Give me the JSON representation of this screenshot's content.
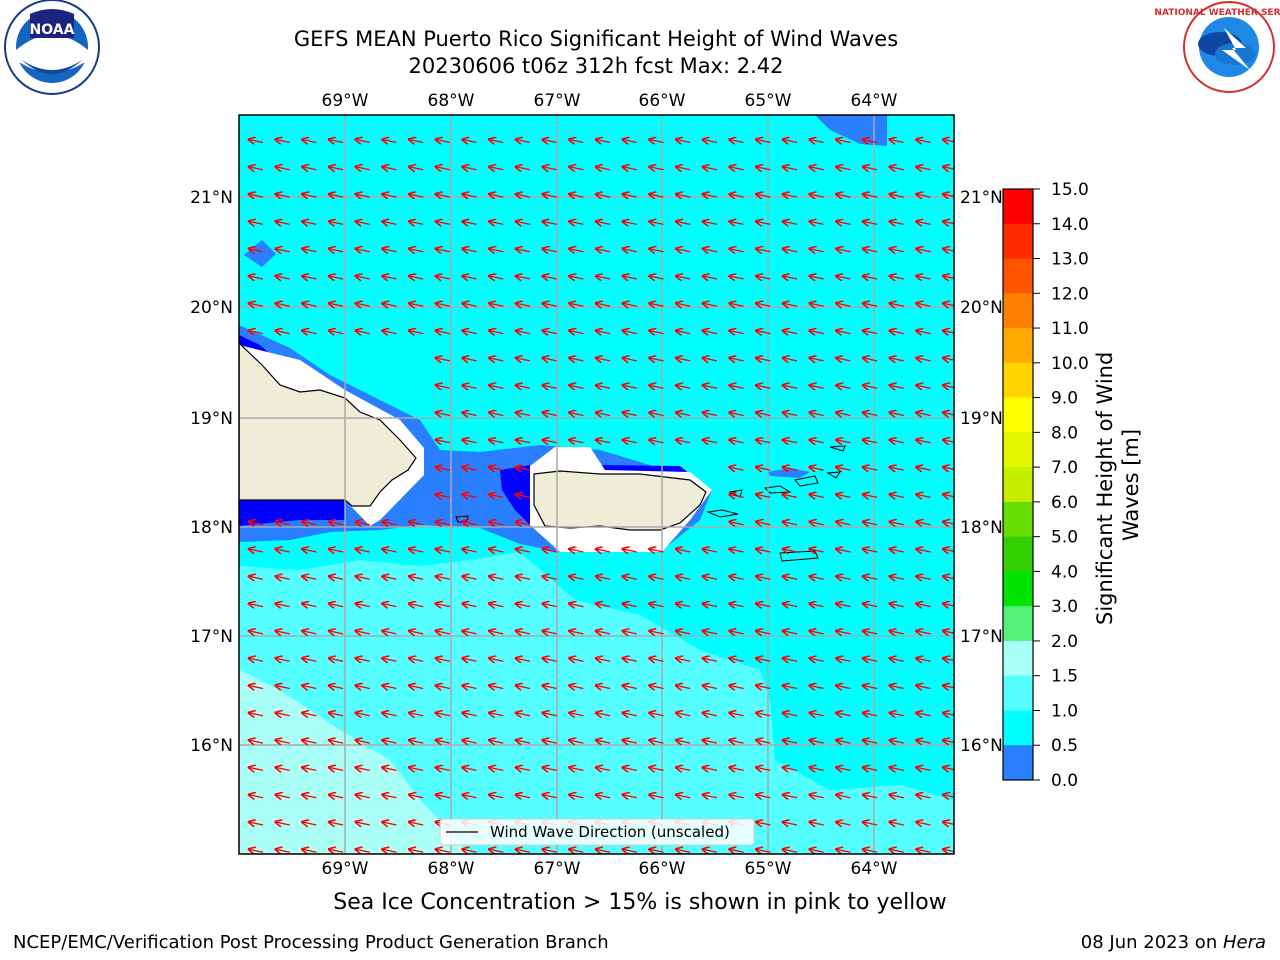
{
  "title_line1": "GEFS MEAN Puerto Rico Significant Height of Wind Waves",
  "title_line2": "20230606 t06z 312h fcst   Max: 2.42",
  "logos": {
    "left": "NOAA",
    "right": "NATIONAL WEATHER SERVICE"
  },
  "map": {
    "lon_labels": [
      "69°W",
      "68°W",
      "67°W",
      "66°W",
      "65°W",
      "64°W"
    ],
    "lat_labels": [
      "21°N",
      "20°N",
      "19°N",
      "18°N",
      "17°N",
      "16°N"
    ],
    "legend_label": "Wind Wave Direction (unscaled)"
  },
  "colorbar": {
    "label": "Significant Height of Wind Waves [m]",
    "ticks": [
      "15.0",
      "14.0",
      "13.0",
      "12.0",
      "11.0",
      "10.0",
      "9.0",
      "8.0",
      "7.0",
      "6.0",
      "5.0",
      "4.0",
      "3.0",
      "2.0",
      "1.5",
      "1.0",
      "0.5",
      "0.0"
    ],
    "colors": [
      "#ff0000",
      "#ff2a00",
      "#ff5500",
      "#ff8000",
      "#ffaa00",
      "#ffd400",
      "#ffff00",
      "#e3f700",
      "#c6ef00",
      "#66dd00",
      "#33d000",
      "#00e400",
      "#55f07a",
      "#aafff7",
      "#55ffff",
      "#00ffff",
      "#2a7fff",
      "#0000ff"
    ]
  },
  "ice_note": "Sea Ice Concentration > 15% is shown in pink to yellow",
  "footer_left": "NCEP/EMC/Verification Post Processing Product Generation Branch",
  "footer_right_prefix": "08 Jun 2023 on ",
  "footer_right_host": "Hera"
}
